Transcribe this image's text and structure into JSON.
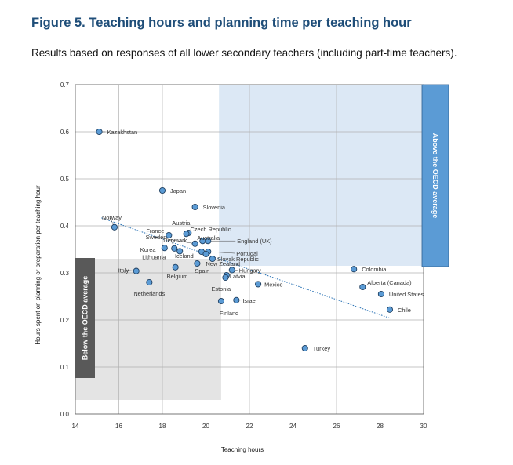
{
  "figure": {
    "title": "Figure 5. Teaching hours and planning time per teaching hour",
    "subtitle": "Results based on responses of all lower secondary teachers (including part-time teachers)."
  },
  "colors": {
    "title": "#1f4e79",
    "above_band": "#5b9bd5",
    "above_shade": "#dce8f5",
    "below_band": "#595959",
    "below_shade": "#e4e4e4",
    "marker_fill": "#5b9bd5",
    "marker_stroke": "#1f3f60",
    "trendline": "#2e75b6"
  },
  "chart_data": {
    "type": "scatter",
    "xlabel": "Teaching hours",
    "ylabel": "Hours spent on planning or preparation per teaching hour",
    "xlim": [
      14,
      30
    ],
    "ylim": [
      0.0,
      0.7
    ],
    "xticks": [
      "14",
      "16",
      "18",
      "20",
      "22",
      "24",
      "26",
      "28",
      "30"
    ],
    "yticks": [
      "0.0",
      "0.1",
      "0.2",
      "0.3",
      "0.4",
      "0.5",
      "0.6",
      "0.7"
    ],
    "grid": true,
    "trendline": true,
    "regions": [
      {
        "name": "Above the OECD average",
        "x": [
          20.6,
          30
        ],
        "y": [
          0.315,
          0.7
        ]
      },
      {
        "name": "Below the OECD average",
        "x": [
          14,
          20.7
        ],
        "y": [
          0.03,
          0.33
        ]
      }
    ],
    "points": [
      {
        "label": "Kazakhstan",
        "x": 15.1,
        "y": 0.6
      },
      {
        "label": "Japan",
        "x": 18.0,
        "y": 0.475
      },
      {
        "label": "Slovenia",
        "x": 19.5,
        "y": 0.44
      },
      {
        "label": "Norway",
        "x": 15.8,
        "y": 0.397
      },
      {
        "label": "Austria",
        "x": 19.2,
        "y": 0.385
      },
      {
        "label": "Czech Republic",
        "x": 19.1,
        "y": 0.383
      },
      {
        "label": "France",
        "x": 18.3,
        "y": 0.38
      },
      {
        "label": "Australia",
        "x": 19.85,
        "y": 0.368
      },
      {
        "label": "England (UK)",
        "x": 20.1,
        "y": 0.368
      },
      {
        "label": "Sweden",
        "x": 19.5,
        "y": 0.362
      },
      {
        "label": "Korea",
        "x": 18.1,
        "y": 0.353
      },
      {
        "label": "Denmark",
        "x": 18.55,
        "y": 0.352
      },
      {
        "label": "Portugal",
        "x": 20.1,
        "y": 0.345
      },
      {
        "label": "Lithuania",
        "x": 18.8,
        "y": 0.346
      },
      {
        "label": "Iceland",
        "x": 19.8,
        "y": 0.345
      },
      {
        "label": "Slovak Republic",
        "x": 20.3,
        "y": 0.33
      },
      {
        "label": "New Zealand",
        "x": 20.0,
        "y": 0.34
      },
      {
        "label": "Italy",
        "x": 16.8,
        "y": 0.304
      },
      {
        "label": "Belgium",
        "x": 18.6,
        "y": 0.312
      },
      {
        "label": "Spain",
        "x": 19.6,
        "y": 0.32
      },
      {
        "label": "Hungary",
        "x": 21.2,
        "y": 0.306
      },
      {
        "label": "Latvia",
        "x": 20.95,
        "y": 0.295
      },
      {
        "label": "Estonia",
        "x": 20.9,
        "y": 0.29
      },
      {
        "label": "Netherlands",
        "x": 17.4,
        "y": 0.28
      },
      {
        "label": "Mexico",
        "x": 22.4,
        "y": 0.276
      },
      {
        "label": "Israel",
        "x": 21.4,
        "y": 0.242
      },
      {
        "label": "Finland",
        "x": 20.7,
        "y": 0.24
      },
      {
        "label": "Colombia",
        "x": 26.8,
        "y": 0.308
      },
      {
        "label": "Alberta (Canada)",
        "x": 27.2,
        "y": 0.27
      },
      {
        "label": "United States",
        "x": 28.05,
        "y": 0.255
      },
      {
        "label": "Chile",
        "x": 28.45,
        "y": 0.222
      },
      {
        "label": "Turkey",
        "x": 24.55,
        "y": 0.14
      }
    ]
  }
}
